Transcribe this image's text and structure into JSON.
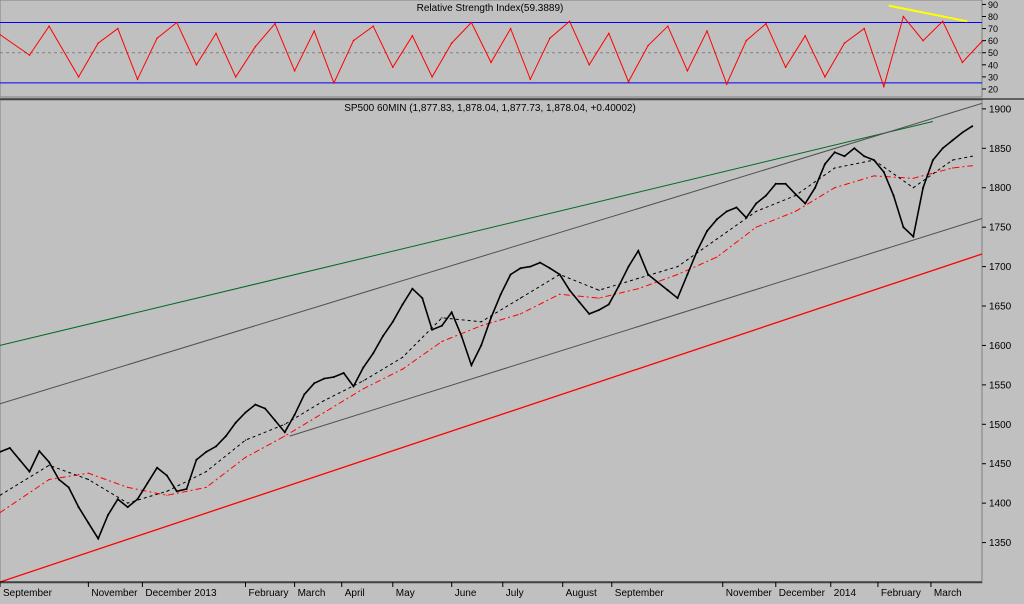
{
  "chart_data": [
    {
      "type": "line",
      "title": "Relative Strength Index(59.3889)",
      "ylim": [
        15,
        92
      ],
      "yticks": [
        20,
        30,
        40,
        50,
        60,
        70,
        80,
        90
      ],
      "overbought": 75,
      "oversold": 25,
      "midline": 50,
      "series": [
        {
          "color": "#ff0000",
          "x": [
            0,
            3,
            5,
            8,
            10,
            12,
            14,
            16,
            18,
            20,
            22,
            24,
            26,
            28,
            30,
            32,
            34,
            36,
            38,
            40,
            42,
            44,
            46,
            48,
            50,
            52,
            54,
            56,
            58,
            60,
            62,
            64,
            66,
            68,
            70,
            72,
            74,
            76,
            78,
            80,
            82,
            84,
            86,
            88,
            90,
            92,
            94,
            96,
            98,
            100
          ],
          "y": [
            65,
            48,
            72,
            30,
            58,
            70,
            28,
            62,
            75,
            40,
            66,
            30,
            55,
            74,
            35,
            68,
            25,
            60,
            72,
            38,
            64,
            30,
            58,
            75,
            42,
            70,
            28,
            62,
            76,
            40,
            66,
            26,
            56,
            72,
            35,
            68,
            24,
            60,
            74,
            38,
            64,
            30,
            58,
            70,
            22,
            80,
            60,
            76,
            42,
            59.4
          ]
        }
      ],
      "trendline_yellow": {
        "from": [
          90.5,
          89
        ],
        "to": [
          98.5,
          76
        ]
      }
    },
    {
      "type": "line",
      "title": "SP500 60MIN (1,877.83, 1,878.04, 1,877.73, 1,878.04, +0.40002)",
      "ylim": [
        1300,
        1910
      ],
      "yticks": [
        1350,
        1400,
        1450,
        1500,
        1550,
        1600,
        1650,
        1700,
        1750,
        1800,
        1850,
        1900
      ],
      "x_tick_labels": [
        "September",
        "November",
        "December 2013",
        "February",
        "March",
        "April",
        "May",
        "June",
        "July",
        "August",
        "September",
        "November",
        "December",
        "2014",
        "February",
        "March"
      ],
      "x_tick_pos": [
        0,
        9,
        14.5,
        25,
        30,
        34.8,
        40,
        46,
        51.2,
        57.3,
        62.3,
        73.6,
        79,
        84.6,
        89.4,
        94.8
      ],
      "series": [
        {
          "name": "price",
          "color": "#000000",
          "x": [
            0,
            1,
            2,
            3,
            4,
            5,
            6,
            7,
            8,
            9,
            10,
            11,
            12,
            13,
            14,
            15,
            16,
            17,
            18,
            19,
            20,
            21,
            22,
            23,
            24,
            25,
            26,
            27,
            28,
            29,
            30,
            31,
            32,
            33,
            34,
            35,
            36,
            37,
            38,
            39,
            40,
            41,
            42,
            43,
            44,
            45,
            46,
            47,
            48,
            49,
            50,
            51,
            52,
            53,
            54,
            55,
            56,
            57,
            58,
            59,
            60,
            61,
            62,
            63,
            64,
            65,
            66,
            67,
            68,
            69,
            70,
            71,
            72,
            73,
            74,
            75,
            76,
            77,
            78,
            79,
            80,
            81,
            82,
            83,
            84,
            85,
            86,
            87,
            88,
            89,
            90,
            91,
            92,
            93,
            94,
            95,
            96,
            97,
            98,
            99
          ],
          "y": [
            1465,
            1470,
            1455,
            1440,
            1466,
            1452,
            1430,
            1420,
            1395,
            1375,
            1355,
            1385,
            1405,
            1395,
            1405,
            1425,
            1445,
            1435,
            1415,
            1418,
            1455,
            1465,
            1472,
            1485,
            1502,
            1515,
            1525,
            1520,
            1505,
            1490,
            1512,
            1538,
            1552,
            1558,
            1560,
            1565,
            1548,
            1572,
            1590,
            1612,
            1630,
            1652,
            1672,
            1660,
            1620,
            1625,
            1642,
            1612,
            1575,
            1600,
            1635,
            1665,
            1690,
            1698,
            1700,
            1705,
            1698,
            1690,
            1670,
            1655,
            1640,
            1645,
            1652,
            1675,
            1700,
            1720,
            1690,
            1680,
            1670,
            1660,
            1690,
            1720,
            1745,
            1760,
            1770,
            1775,
            1762,
            1780,
            1790,
            1805,
            1805,
            1792,
            1780,
            1800,
            1830,
            1845,
            1840,
            1850,
            1840,
            1835,
            1820,
            1790,
            1750,
            1738,
            1800,
            1835,
            1850,
            1860,
            1870,
            1878
          ]
        },
        {
          "name": "fast-ma",
          "color": "#000000",
          "dash": "3,3",
          "x": [
            0,
            5,
            9,
            13,
            17,
            21,
            25,
            29,
            33,
            37,
            41,
            45,
            49,
            53,
            57,
            61,
            65,
            69,
            73,
            77,
            81,
            85,
            89,
            93,
            97,
            99
          ],
          "y": [
            1410,
            1448,
            1430,
            1400,
            1415,
            1440,
            1480,
            1500,
            1530,
            1555,
            1585,
            1635,
            1630,
            1660,
            1690,
            1670,
            1685,
            1700,
            1735,
            1770,
            1790,
            1825,
            1835,
            1800,
            1835,
            1840
          ]
        },
        {
          "name": "slow-ma",
          "color": "#ff0000",
          "dash": "6,3,2,3",
          "x": [
            0,
            5,
            9,
            13,
            17,
            21,
            25,
            29,
            33,
            37,
            41,
            45,
            49,
            53,
            57,
            61,
            65,
            69,
            73,
            77,
            81,
            85,
            89,
            93,
            97,
            99
          ],
          "y": [
            1388,
            1430,
            1438,
            1420,
            1410,
            1420,
            1458,
            1485,
            1515,
            1545,
            1570,
            1605,
            1625,
            1640,
            1665,
            1660,
            1672,
            1690,
            1712,
            1750,
            1770,
            1800,
            1815,
            1812,
            1825,
            1828
          ]
        }
      ],
      "trendlines": [
        {
          "color": "#ff0000",
          "from": [
            0,
            1300
          ],
          "to": [
            100,
            1716
          ]
        },
        {
          "color": "#006a23",
          "from": [
            0,
            1600
          ],
          "to": [
            95,
            1884
          ]
        },
        {
          "color": "#505050",
          "from": [
            0,
            1526
          ],
          "to": [
            100,
            1907
          ]
        },
        {
          "color": "#505050",
          "from": [
            29.5,
            1485
          ],
          "to": [
            100,
            1761
          ]
        }
      ]
    }
  ]
}
